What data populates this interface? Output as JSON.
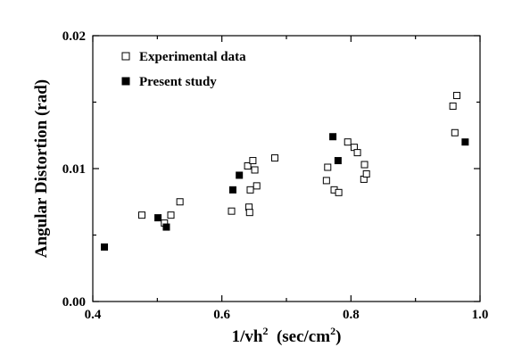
{
  "chart_data": {
    "type": "scatter",
    "xlabel_main": "1/vh",
    "xlabel_sup": "2",
    "xlabel_units_main": "(sec/cm",
    "xlabel_units_sup": "2",
    "xlabel_units_close": ")",
    "ylabel": "Angular Distortion (rad)",
    "xlim": [
      0.4,
      1.0
    ],
    "ylim": [
      0.0,
      0.02
    ],
    "x_ticks": [
      0.4,
      0.6,
      0.8,
      1.0
    ],
    "x_tick_labels": [
      "0.4",
      "0.6",
      "0.8",
      "1.0"
    ],
    "y_ticks": [
      0.0,
      0.01,
      0.02
    ],
    "y_tick_labels": [
      "0.00",
      "0.01",
      "0.02"
    ],
    "grid": false,
    "legend_position": "top-left",
    "series": [
      {
        "name": "Experimental data",
        "marker": "open-square",
        "color": "#000000",
        "points": [
          [
            0.476,
            0.0065
          ],
          [
            0.511,
            0.0059
          ],
          [
            0.521,
            0.0065
          ],
          [
            0.535,
            0.0075
          ],
          [
            0.615,
            0.0068
          ],
          [
            0.64,
            0.0102
          ],
          [
            0.642,
            0.0071
          ],
          [
            0.643,
            0.0067
          ],
          [
            0.644,
            0.0084
          ],
          [
            0.648,
            0.0106
          ],
          [
            0.651,
            0.0099
          ],
          [
            0.654,
            0.0087
          ],
          [
            0.682,
            0.0108
          ],
          [
            0.762,
            0.0091
          ],
          [
            0.764,
            0.0101
          ],
          [
            0.774,
            0.0084
          ],
          [
            0.781,
            0.0082
          ],
          [
            0.795,
            0.012
          ],
          [
            0.805,
            0.0116
          ],
          [
            0.81,
            0.0112
          ],
          [
            0.82,
            0.0092
          ],
          [
            0.821,
            0.0103
          ],
          [
            0.824,
            0.0096
          ],
          [
            0.958,
            0.0147
          ],
          [
            0.961,
            0.0127
          ],
          [
            0.964,
            0.0155
          ]
        ]
      },
      {
        "name": "Present study",
        "marker": "filled-square",
        "color": "#000000",
        "points": [
          [
            0.418,
            0.0041
          ],
          [
            0.501,
            0.0063
          ],
          [
            0.514,
            0.0056
          ],
          [
            0.617,
            0.0084
          ],
          [
            0.627,
            0.0095
          ],
          [
            0.772,
            0.0124
          ],
          [
            0.78,
            0.0106
          ],
          [
            0.977,
            0.012
          ]
        ]
      }
    ]
  }
}
